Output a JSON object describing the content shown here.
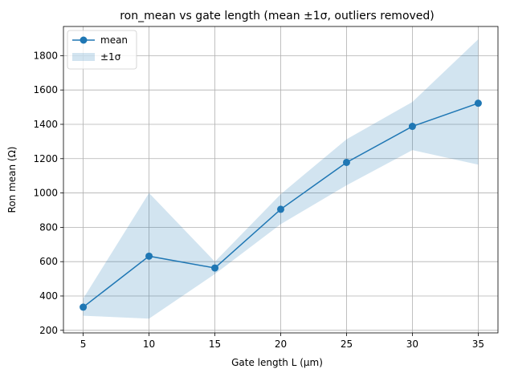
{
  "chart_data": {
    "type": "line",
    "title": "ron_mean vs gate length (mean ±1σ, outliers removed)",
    "xlabel": "Gate length L (µm)",
    "ylabel": "Ron mean (Ω)",
    "x": [
      5,
      10,
      15,
      20,
      25,
      30,
      35
    ],
    "xticks": [
      5,
      10,
      15,
      20,
      25,
      30,
      35
    ],
    "yticks": [
      200,
      400,
      600,
      800,
      1000,
      1200,
      1400,
      1600,
      1800
    ],
    "xlim": [
      3.5,
      36.5
    ],
    "ylim": [
      185,
      1970
    ],
    "grid": true,
    "legend_position": "top-left",
    "series": [
      {
        "name": "mean",
        "values": [
          335,
          632,
          563,
          905,
          1178,
          1388,
          1523
        ],
        "color": "#1f77b4",
        "marker": "circle"
      }
    ],
    "band": {
      "name": "±1σ",
      "lower": [
        285,
        268,
        528,
        818,
        1045,
        1250,
        1165
      ],
      "upper": [
        385,
        1000,
        600,
        993,
        1313,
        1530,
        1895
      ],
      "color": "#1f77b4",
      "opacity": 0.2
    }
  }
}
